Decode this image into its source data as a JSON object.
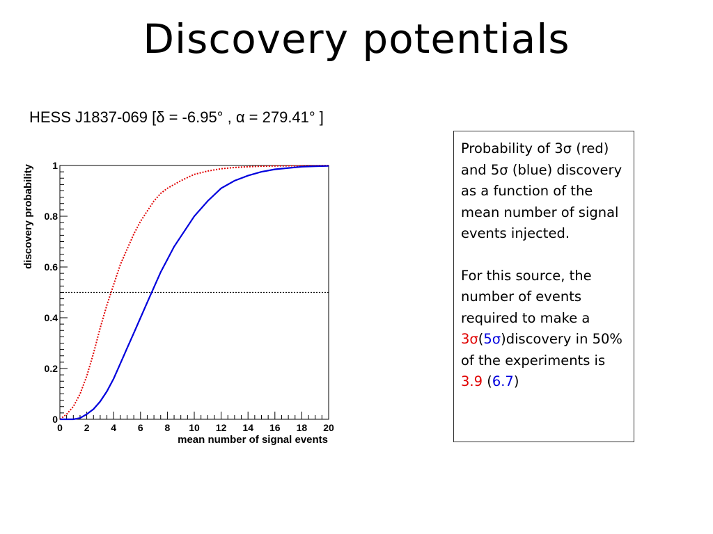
{
  "slide": {
    "title": "Discovery potentials",
    "subtitle": "HESS J1837-069 [δ = -6.95° , α = 279.41° ]"
  },
  "infobox": {
    "paragraph1": "Probability of 3σ (red) and 5σ (blue) discovery as a function of the mean number of signal events injected.",
    "p2_intro": "For this source, the number of events required to make a",
    "p2_red_sigma": "3σ",
    "p2_box": "",
    "p2_open_paren": "(",
    "p2_blue_sigma": "5σ",
    "p2_mid": ")discovery in 50% of the experiments is",
    "p2_red_value": "3.9",
    "p2_blue_open": "(",
    "p2_blue_value": "6.7",
    "p2_blue_close": ")"
  },
  "colors": {
    "red": "#e00000",
    "blue": "#0000dd",
    "threshold": "#000000"
  },
  "chart_data": {
    "type": "line",
    "xlabel": "mean number of signal events",
    "ylabel": "discovery probability",
    "xlim": [
      0,
      20
    ],
    "ylim": [
      0,
      1
    ],
    "x_ticks": [
      "0",
      "2",
      "4",
      "6",
      "8",
      "10",
      "12",
      "14",
      "16",
      "18",
      "20"
    ],
    "y_ticks": [
      "0",
      "0.2",
      "0.4",
      "0.6",
      "0.8",
      "1"
    ],
    "grid": false,
    "threshold": 0.5,
    "series": [
      {
        "color": "red",
        "style": "dotted",
        "x": [
          0,
          0.5,
          1,
          1.5,
          2,
          2.5,
          3,
          3.5,
          4,
          4.5,
          5,
          5.5,
          6,
          6.5,
          7,
          7.5,
          8,
          9,
          10,
          11,
          12,
          13,
          14,
          15,
          16,
          18,
          20
        ],
        "y": [
          0.0,
          0.02,
          0.05,
          0.1,
          0.17,
          0.26,
          0.36,
          0.45,
          0.53,
          0.61,
          0.67,
          0.73,
          0.78,
          0.82,
          0.86,
          0.89,
          0.91,
          0.94,
          0.965,
          0.978,
          0.987,
          0.992,
          0.995,
          0.997,
          0.998,
          0.999,
          1.0
        ]
      },
      {
        "color": "blue",
        "style": "solid",
        "x": [
          0,
          1,
          1.5,
          2,
          2.5,
          3,
          3.5,
          4,
          4.5,
          5,
          5.5,
          6,
          6.5,
          7,
          7.5,
          8,
          8.5,
          9,
          10,
          11,
          12,
          13,
          14,
          15,
          16,
          17,
          18,
          19,
          20
        ],
        "y": [
          0.0,
          0.0,
          0.005,
          0.02,
          0.04,
          0.07,
          0.11,
          0.16,
          0.22,
          0.28,
          0.34,
          0.4,
          0.46,
          0.52,
          0.58,
          0.63,
          0.68,
          0.72,
          0.8,
          0.86,
          0.91,
          0.94,
          0.96,
          0.975,
          0.985,
          0.99,
          0.995,
          0.997,
          0.998
        ]
      }
    ]
  }
}
